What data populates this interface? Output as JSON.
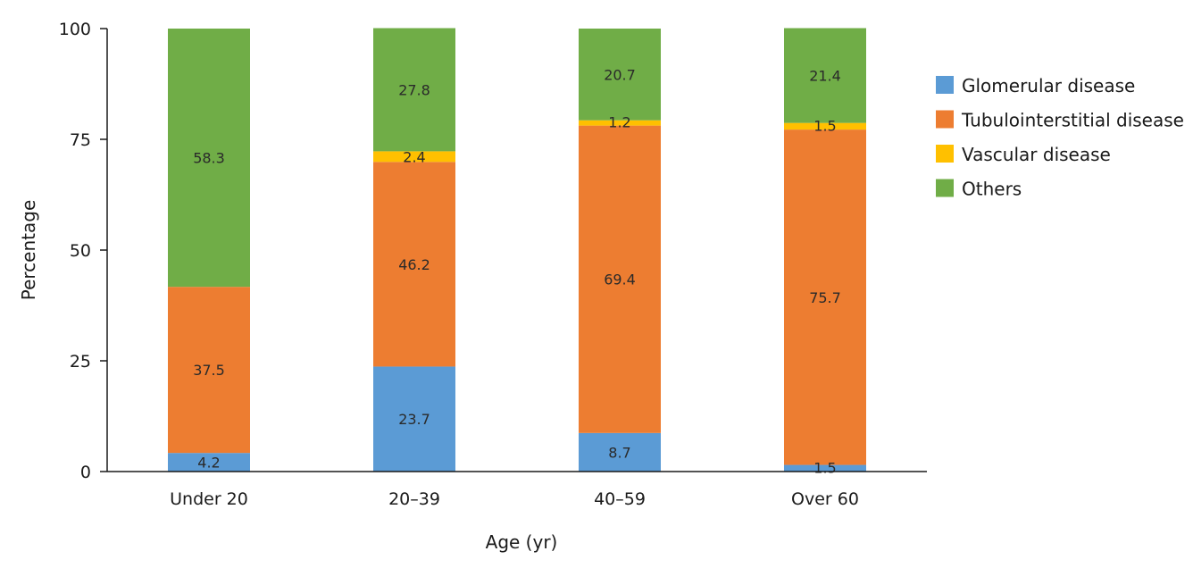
{
  "chart_data": {
    "type": "bar",
    "stacked": true,
    "title": "",
    "xlabel": "Age (yr)",
    "ylabel": "Percentage",
    "ylim": [
      0,
      100
    ],
    "yticks": [
      0,
      25,
      50,
      75,
      100
    ],
    "grid": false,
    "legend_position": "right",
    "categories": [
      "Under 20",
      "20–39",
      "40–59",
      "Over 60"
    ],
    "series": [
      {
        "name": "Glomerular disease",
        "color": "#5b9bd5",
        "values": [
          4.2,
          23.7,
          8.7,
          1.5
        ],
        "labels": [
          "4.2",
          "23.7",
          "8.7",
          "1.5"
        ]
      },
      {
        "name": "Tubulointerstitial disease",
        "color": "#ed7d31",
        "values": [
          37.5,
          46.2,
          69.4,
          75.7
        ],
        "labels": [
          "37.5",
          "46.2",
          "69.4",
          "75.7"
        ]
      },
      {
        "name": "Vascular disease",
        "color": "#ffc000",
        "values": [
          0,
          2.4,
          1.2,
          1.5
        ],
        "labels": [
          "",
          "2.4",
          "1.2",
          "1.5"
        ]
      },
      {
        "name": "Others",
        "color": "#70ad47",
        "values": [
          58.3,
          27.8,
          20.7,
          21.4
        ],
        "labels": [
          "58.3",
          "27.8",
          "20.7",
          "21.4"
        ]
      }
    ]
  }
}
